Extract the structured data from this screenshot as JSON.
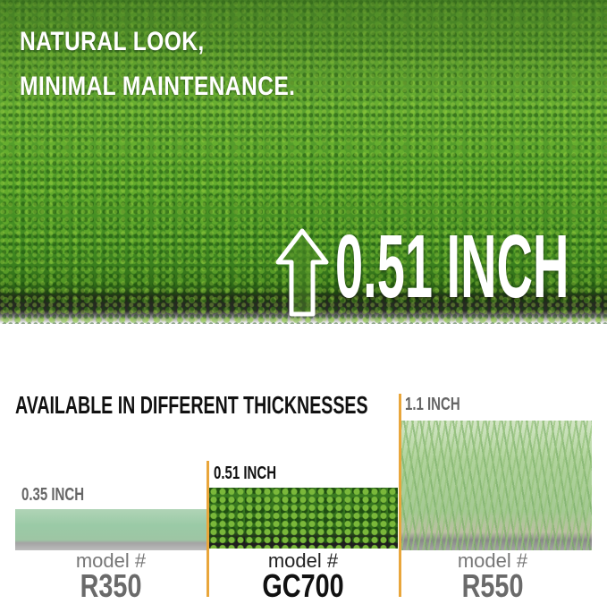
{
  "hero": {
    "headline_line1": "NATURAL LOOK,",
    "headline_line2": "MINIMAL MAINTENANCE.",
    "height_label": "0.51 INCH",
    "arrow_icon": "arrow-up-icon"
  },
  "comparison": {
    "title": "AVAILABLE IN DIFFERENT THICKNESSES",
    "accent_color": "#e9a63b",
    "products": [
      {
        "thickness": "0.35 INCH",
        "model_label": "model #",
        "model": "R350"
      },
      {
        "thickness": "0.51 INCH",
        "model_label": "model #",
        "model": "GC700"
      },
      {
        "thickness": "1.1 INCH",
        "model_label": "model #",
        "model": "R550"
      }
    ]
  }
}
